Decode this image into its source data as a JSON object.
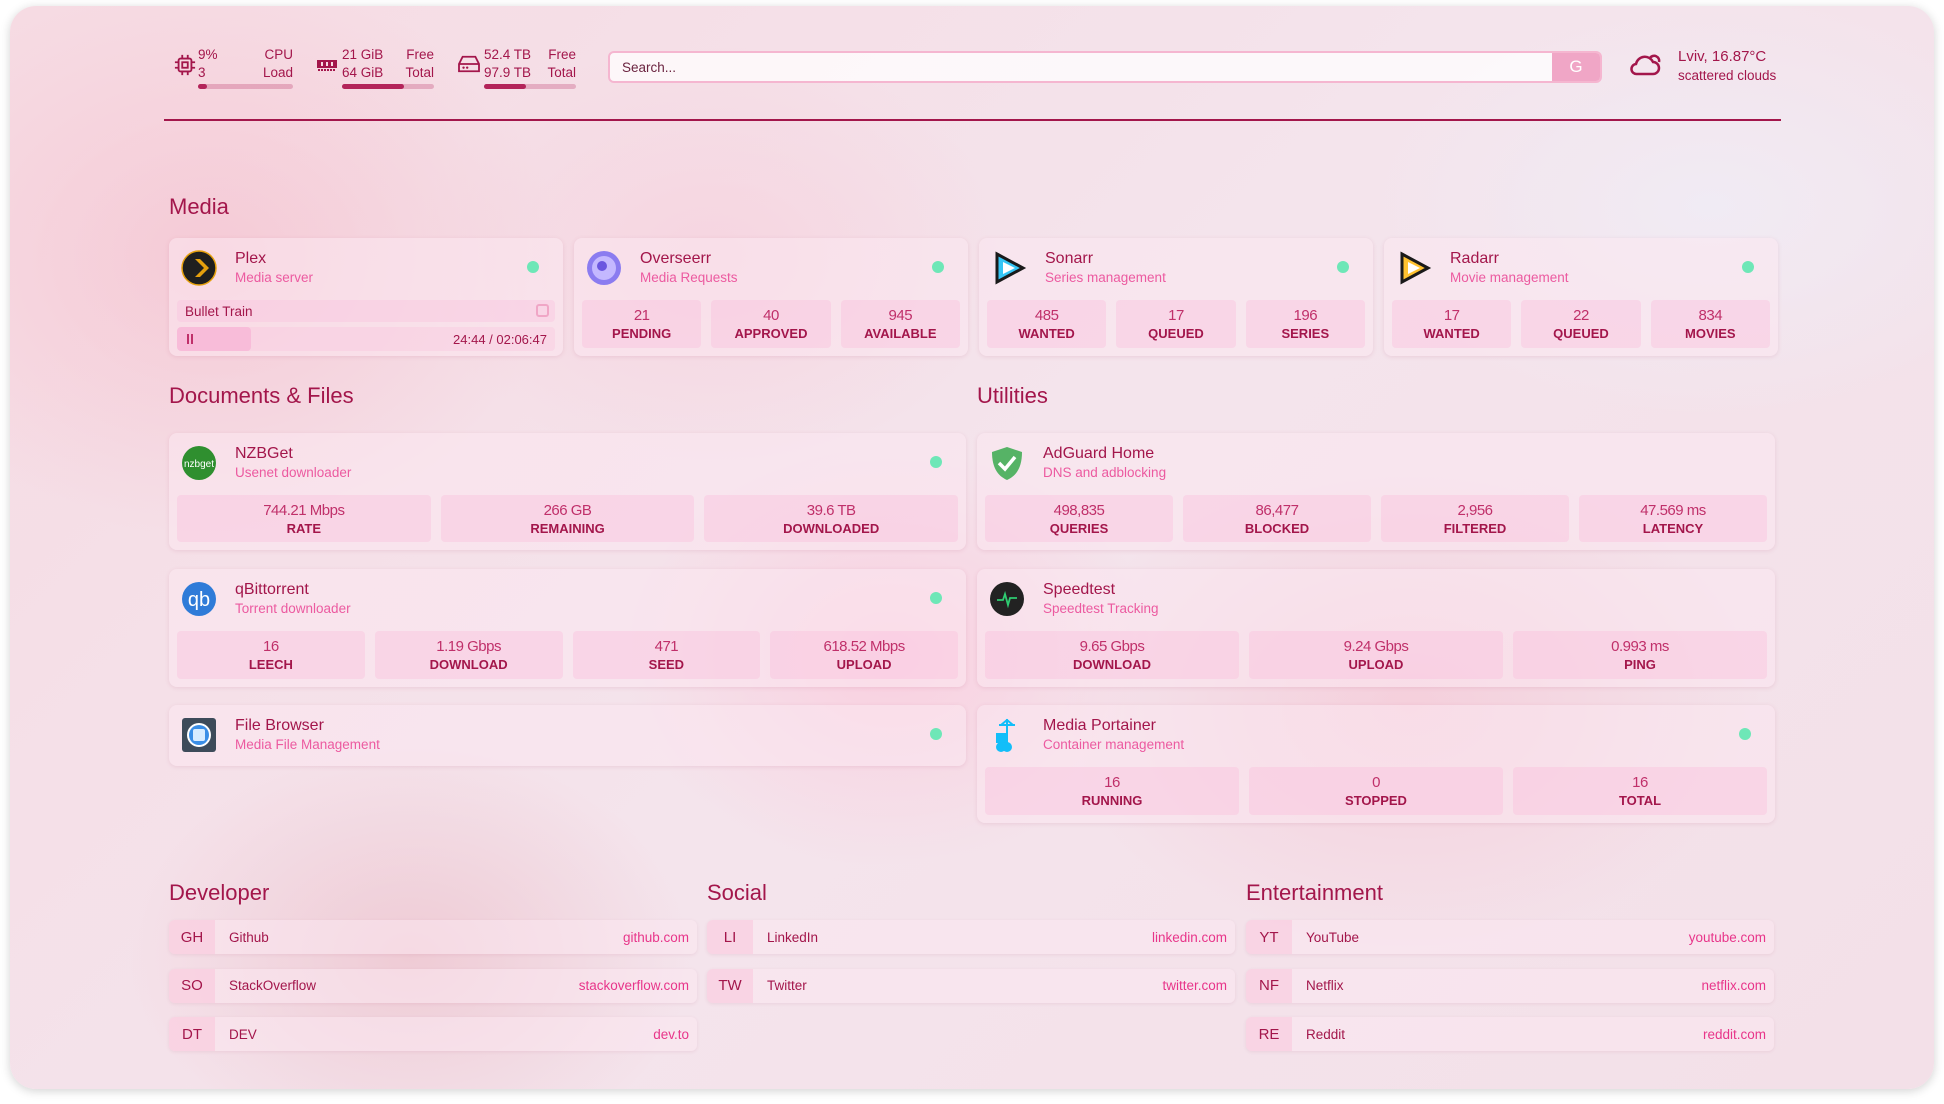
{
  "header": {
    "cpu": {
      "icon": "cpu-icon",
      "value": "9%",
      "sub": "3",
      "label1": "CPU",
      "label2": "Load",
      "fill": 0.09
    },
    "memory": {
      "icon": "memory-icon",
      "value": "21 GiB",
      "sub": "64 GiB",
      "label1": "Free",
      "label2": "Total",
      "fill": 0.67
    },
    "disk": {
      "icon": "hard-drive-icon",
      "value": "52.4 TB",
      "sub": "97.9 TB",
      "label1": "Free",
      "label2": "Total",
      "fill": 0.46
    },
    "search": {
      "placeholder": "Search...",
      "button": "G"
    },
    "weather": {
      "icon": "cloud-sun-icon",
      "location": "Lviv, 16.87°C",
      "condition": "scattered clouds"
    }
  },
  "colors": {
    "accent": "#a3164b",
    "subtitle": "#ec5aa0",
    "status_ok": "#6ee7b7"
  },
  "sections": {
    "media": "Media",
    "documents": "Documents & Files",
    "utilities": "Utilities",
    "developer": "Developer",
    "social": "Social",
    "entertainment": "Entertainment"
  },
  "media": [
    {
      "name": "Plex",
      "desc": "Media server",
      "icon": "plex-icon",
      "now_playing": {
        "title": "Bullet Train",
        "time": "24:44 / 02:06:47",
        "progress": 0.195
      }
    },
    {
      "name": "Overseerr",
      "desc": "Media Requests",
      "icon": "overseerr-icon",
      "stats": [
        {
          "v": "21",
          "l": "PENDING"
        },
        {
          "v": "40",
          "l": "APPROVED"
        },
        {
          "v": "945",
          "l": "AVAILABLE"
        }
      ]
    },
    {
      "name": "Sonarr",
      "desc": "Series management",
      "icon": "sonarr-icon",
      "stats": [
        {
          "v": "485",
          "l": "WANTED"
        },
        {
          "v": "17",
          "l": "QUEUED"
        },
        {
          "v": "196",
          "l": "SERIES"
        }
      ]
    },
    {
      "name": "Radarr",
      "desc": "Movie management",
      "icon": "radarr-icon",
      "stats": [
        {
          "v": "17",
          "l": "WANTED"
        },
        {
          "v": "22",
          "l": "QUEUED"
        },
        {
          "v": "834",
          "l": "MOVIES"
        }
      ]
    }
  ],
  "documents": [
    {
      "name": "NZBGet",
      "desc": "Usenet downloader",
      "icon": "nzbget-icon",
      "stats": [
        {
          "v": "744.21 Mbps",
          "l": "RATE"
        },
        {
          "v": "266 GB",
          "l": "REMAINING"
        },
        {
          "v": "39.6 TB",
          "l": "DOWNLOADED"
        }
      ]
    },
    {
      "name": "qBittorrent",
      "desc": "Torrent downloader",
      "icon": "qbittorrent-icon",
      "stats": [
        {
          "v": "16",
          "l": "LEECH"
        },
        {
          "v": "1.19 Gbps",
          "l": "DOWNLOAD"
        },
        {
          "v": "471",
          "l": "SEED"
        },
        {
          "v": "618.52 Mbps",
          "l": "UPLOAD"
        }
      ]
    },
    {
      "name": "File Browser",
      "desc": "Media File Management",
      "icon": "file-browser-icon"
    }
  ],
  "utilities": [
    {
      "name": "AdGuard Home",
      "desc": "DNS and adblocking",
      "icon": "adguard-icon",
      "nodot": true,
      "stats": [
        {
          "v": "498,835",
          "l": "QUERIES"
        },
        {
          "v": "86,477",
          "l": "BLOCKED"
        },
        {
          "v": "2,956",
          "l": "FILTERED"
        },
        {
          "v": "47.569 ms",
          "l": "LATENCY"
        }
      ]
    },
    {
      "name": "Speedtest",
      "desc": "Speedtest Tracking",
      "icon": "speedtest-icon",
      "nodot": true,
      "stats": [
        {
          "v": "9.65 Gbps",
          "l": "DOWNLOAD"
        },
        {
          "v": "9.24 Gbps",
          "l": "UPLOAD"
        },
        {
          "v": "0.993 ms",
          "l": "PING"
        }
      ]
    },
    {
      "name": "Media Portainer",
      "desc": "Container management",
      "icon": "portainer-icon",
      "stats": [
        {
          "v": "16",
          "l": "RUNNING"
        },
        {
          "v": "0",
          "l": "STOPPED"
        },
        {
          "v": "16",
          "l": "TOTAL"
        }
      ]
    }
  ],
  "bookmarks": {
    "developer": [
      {
        "abbr": "GH",
        "name": "Github",
        "url": "github.com"
      },
      {
        "abbr": "SO",
        "name": "StackOverflow",
        "url": "stackoverflow.com"
      },
      {
        "abbr": "DT",
        "name": "DEV",
        "url": "dev.to"
      }
    ],
    "social": [
      {
        "abbr": "LI",
        "name": "LinkedIn",
        "url": "linkedin.com"
      },
      {
        "abbr": "TW",
        "name": "Twitter",
        "url": "twitter.com"
      }
    ],
    "entertainment": [
      {
        "abbr": "YT",
        "name": "YouTube",
        "url": "youtube.com"
      },
      {
        "abbr": "NF",
        "name": "Netflix",
        "url": "netflix.com"
      },
      {
        "abbr": "RE",
        "name": "Reddit",
        "url": "reddit.com"
      }
    ]
  }
}
